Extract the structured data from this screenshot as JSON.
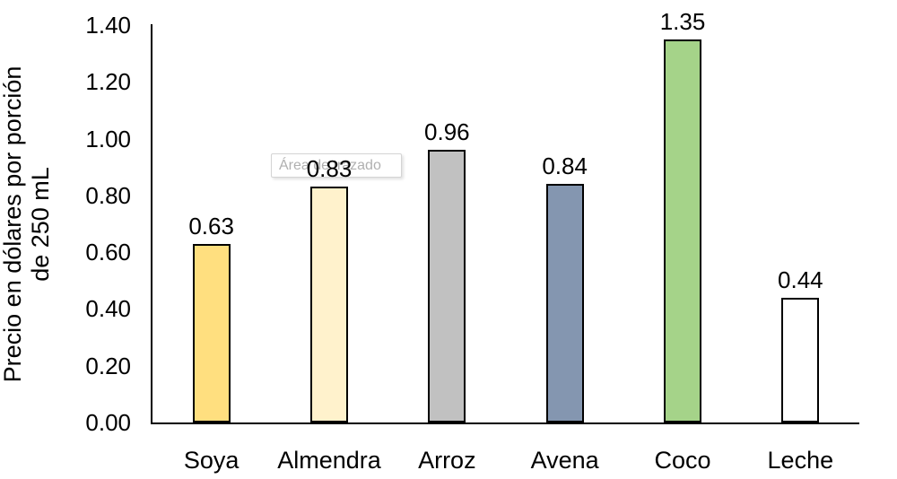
{
  "tooltip": {
    "text": "Área de trazado"
  },
  "chart_data": {
    "type": "bar",
    "title": "",
    "categories": [
      "Soya",
      "Almendra",
      "Arroz",
      "Avena",
      "Coco",
      "Leche"
    ],
    "values": [
      0.63,
      0.83,
      0.96,
      0.84,
      1.35,
      0.44
    ],
    "value_labels": [
      "0.63",
      "0.83",
      "0.96",
      "0.84",
      "1.35",
      "0.44"
    ],
    "bar_colors": [
      "#FFDF7F",
      "#FFF2CC",
      "#C1C1C1",
      "#8496B0",
      "#A5D389",
      "#FFFFFF"
    ],
    "bar_border_color": "#000000",
    "xlabel": "",
    "ylabel": "Precio en dólares por porción de 250 mL",
    "ylabel_lines": [
      "Precio en dólares por porción",
      "de 250 mL"
    ],
    "ylim": [
      0.0,
      1.4
    ],
    "ytick_step": 0.2,
    "ytick_labels": [
      "0.00",
      "0.20",
      "0.40",
      "0.60",
      "0.80",
      "1.00",
      "1.20",
      "1.40"
    ],
    "grid": "off",
    "legend": "none",
    "axis_color": "#000000"
  }
}
